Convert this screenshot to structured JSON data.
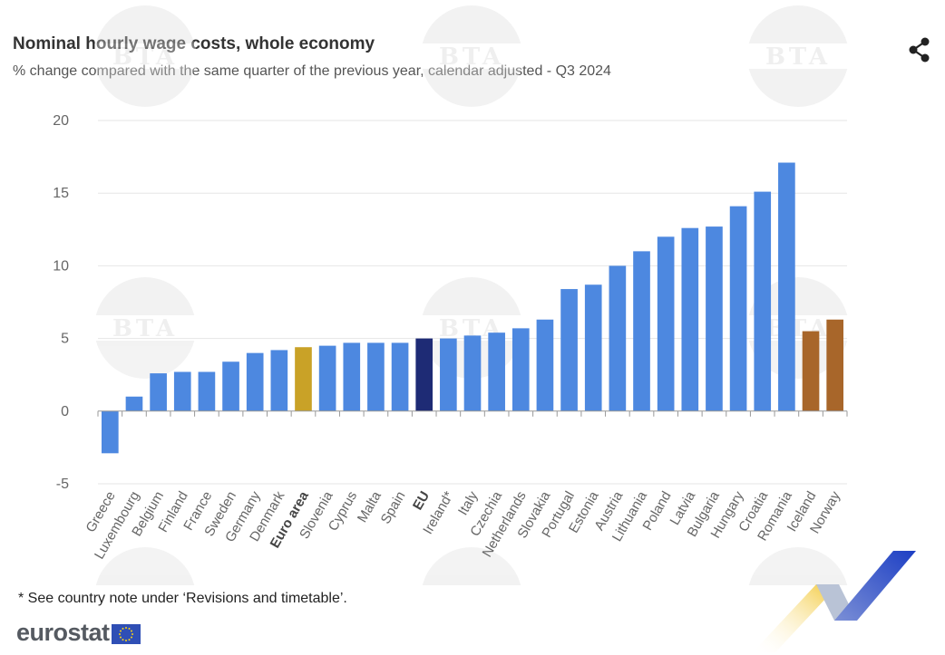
{
  "header": {
    "title": "Nominal hourly wage costs, whole economy",
    "subtitle": "% change compared with the same quarter of the previous year, calendar adjusted - Q3 2024"
  },
  "footnote": "* See country note under ‘Revisions and timetable’.",
  "brand": {
    "name": "eurostat"
  },
  "watermark": {
    "text": "BTA"
  },
  "icons": {
    "share": "share-icon",
    "flag": "eu-flag-icon"
  },
  "colors": {
    "country": "#4d88e0",
    "euro_area": "#c9a227",
    "eu": "#1e2b75",
    "efta": "#a8662a",
    "grid": "#e6e6e6",
    "axis_text": "#666666"
  },
  "chart_data": {
    "type": "bar",
    "title": "Nominal hourly wage costs, whole economy",
    "subtitle": "% change compared with the same quarter of the previous year, calendar adjusted - Q3 2024",
    "xlabel": "",
    "ylabel": "",
    "ylim": [
      -5,
      20
    ],
    "yticks": [
      -5,
      0,
      5,
      10,
      15,
      20
    ],
    "grid": true,
    "legend": "none",
    "categories": [
      "Greece",
      "Luxembourg",
      "Belgium",
      "Finland",
      "France",
      "Sweden",
      "Germany",
      "Denmark",
      "Euro area",
      "Slovenia",
      "Cyprus",
      "Malta",
      "Spain",
      "EU",
      "Ireland*",
      "Italy",
      "Czechia",
      "Netherlands",
      "Slovakia",
      "Portugal",
      "Estonia",
      "Austria",
      "Lithuania",
      "Poland",
      "Latvia",
      "Bulgaria",
      "Hungary",
      "Croatia",
      "Romania",
      "Iceland",
      "Norway"
    ],
    "values": [
      -2.9,
      1.0,
      2.6,
      2.7,
      2.7,
      3.4,
      4.0,
      4.2,
      4.4,
      4.5,
      4.7,
      4.7,
      4.7,
      5.0,
      5.0,
      5.2,
      5.4,
      5.7,
      6.3,
      8.4,
      8.7,
      10.0,
      11.0,
      12.0,
      12.6,
      12.7,
      14.1,
      15.1,
      17.1,
      5.5,
      6.3
    ],
    "groups": [
      "country",
      "country",
      "country",
      "country",
      "country",
      "country",
      "country",
      "country",
      "euro_area",
      "country",
      "country",
      "country",
      "country",
      "eu",
      "country",
      "country",
      "country",
      "country",
      "country",
      "country",
      "country",
      "country",
      "country",
      "country",
      "country",
      "country",
      "country",
      "country",
      "country",
      "efta",
      "efta"
    ],
    "bold_categories": [
      "Euro area",
      "EU"
    ]
  }
}
